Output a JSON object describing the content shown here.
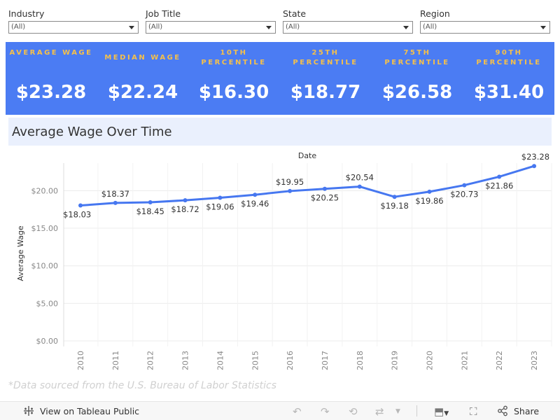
{
  "filters": [
    {
      "label": "Industry",
      "value": "(All)"
    },
    {
      "label": "Job Title",
      "value": "(All)"
    },
    {
      "label": "State",
      "value": "(All)"
    },
    {
      "label": "Region",
      "value": "(All)"
    }
  ],
  "kpis": [
    {
      "label": "AVERAGE WAGE",
      "value": "$23.28"
    },
    {
      "label": "MEDIAN WAGE",
      "value": "$22.24"
    },
    {
      "label": "10TH PERCENTILE",
      "value": "$16.30"
    },
    {
      "label": "25TH PERCENTILE",
      "value": "$18.77"
    },
    {
      "label": "75TH PERCENTILE",
      "value": "$26.58"
    },
    {
      "label": "90TH PERCENTILE",
      "value": "$31.40"
    }
  ],
  "colors": {
    "band": "#4b7cf3",
    "kpi_label": "#f5c04a",
    "line": "#4677f0"
  },
  "chart_data": {
    "type": "line",
    "title": "Average Wage Over Time",
    "xlabel": "Date",
    "ylabel": "Average Wage",
    "categories": [
      "2010",
      "2011",
      "2012",
      "2013",
      "2014",
      "2015",
      "2016",
      "2017",
      "2018",
      "2019",
      "2020",
      "2021",
      "2022",
      "2023"
    ],
    "values": [
      18.03,
      18.37,
      18.45,
      18.72,
      19.06,
      19.46,
      19.95,
      20.25,
      20.54,
      19.18,
      19.86,
      20.73,
      21.86,
      23.28
    ],
    "data_labels": [
      "$18.03",
      "$18.37",
      "$18.45",
      "$18.72",
      "$19.06",
      "$19.46",
      "$19.95",
      "$20.25",
      "$20.54",
      "$19.18",
      "$19.86",
      "$20.73",
      "$21.86",
      "$23.28"
    ],
    "label_positions": [
      "below",
      "above",
      "below",
      "below",
      "below",
      "below",
      "above",
      "below",
      "above",
      "below",
      "below",
      "below",
      "below",
      "above"
    ],
    "yticks": [
      0,
      5,
      10,
      15,
      20
    ],
    "ytick_labels": [
      "$0.00",
      "$5.00",
      "$10.00",
      "$15.00",
      "$20.00"
    ],
    "ylim": [
      0,
      24
    ],
    "grid": true
  },
  "footnote": "*Data sourced from the U.S. Bureau of Labor Statistics",
  "toolbar": {
    "view_label": "View on Tableau Public",
    "share_label": "Share"
  },
  "icons": {
    "tableau": "tableau-logo-icon",
    "undo": "undo-icon",
    "redo": "redo-icon",
    "revert": "revert-icon",
    "refresh": "refresh-icon",
    "download": "download-icon",
    "fullscreen": "fullscreen-icon",
    "share": "share-icon"
  }
}
